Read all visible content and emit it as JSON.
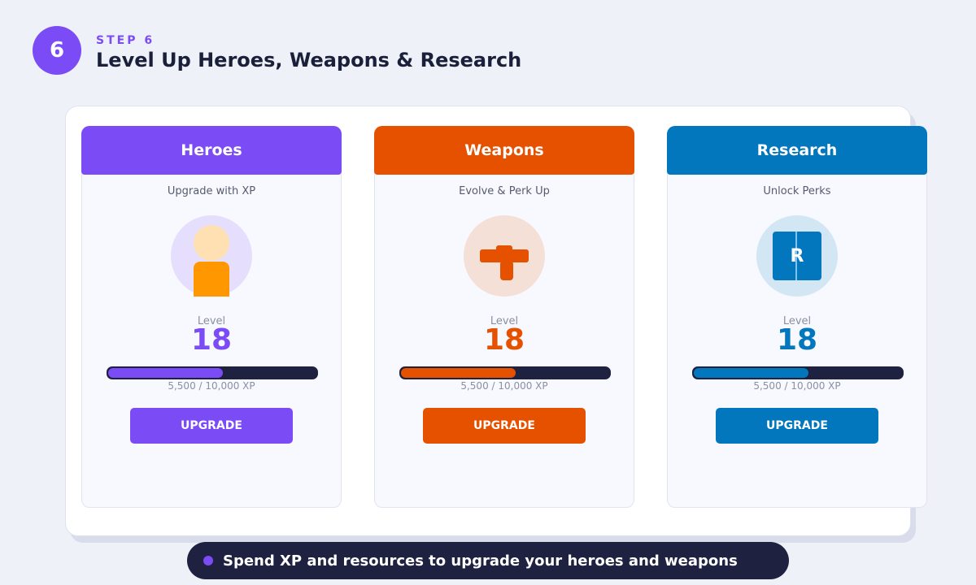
{
  "step": {
    "number": "6",
    "label": "STEP 6",
    "title": "Level Up Heroes, Weapons & Research"
  },
  "cards": [
    {
      "title": "Heroes",
      "subtitle": "Upgrade with XP",
      "color": "#7b4cf5",
      "level_label": "Level",
      "level": 18,
      "xp": {
        "current": 5500,
        "max": 10000,
        "label": "5,500 / 10,000 XP"
      },
      "button": "UPGRADE"
    },
    {
      "title": "Weapons",
      "subtitle": "Evolve & Perk Up",
      "color": "#e65100",
      "level_label": "Level",
      "level": 18,
      "xp": {
        "current": 5500,
        "max": 10000,
        "label": "5,500 / 10,000 XP"
      },
      "button": "UPGRADE"
    },
    {
      "title": "Research",
      "subtitle": "Unlock Perks",
      "color": "#0277bd",
      "icon_text": "R",
      "level_label": "Level",
      "level": 18,
      "xp": {
        "current": 5500,
        "max": 10000,
        "label": "5,500 / 10,000 XP"
      },
      "button": "UPGRADE"
    }
  ],
  "footer": "Spend XP and resources to upgrade your heroes and weapons"
}
